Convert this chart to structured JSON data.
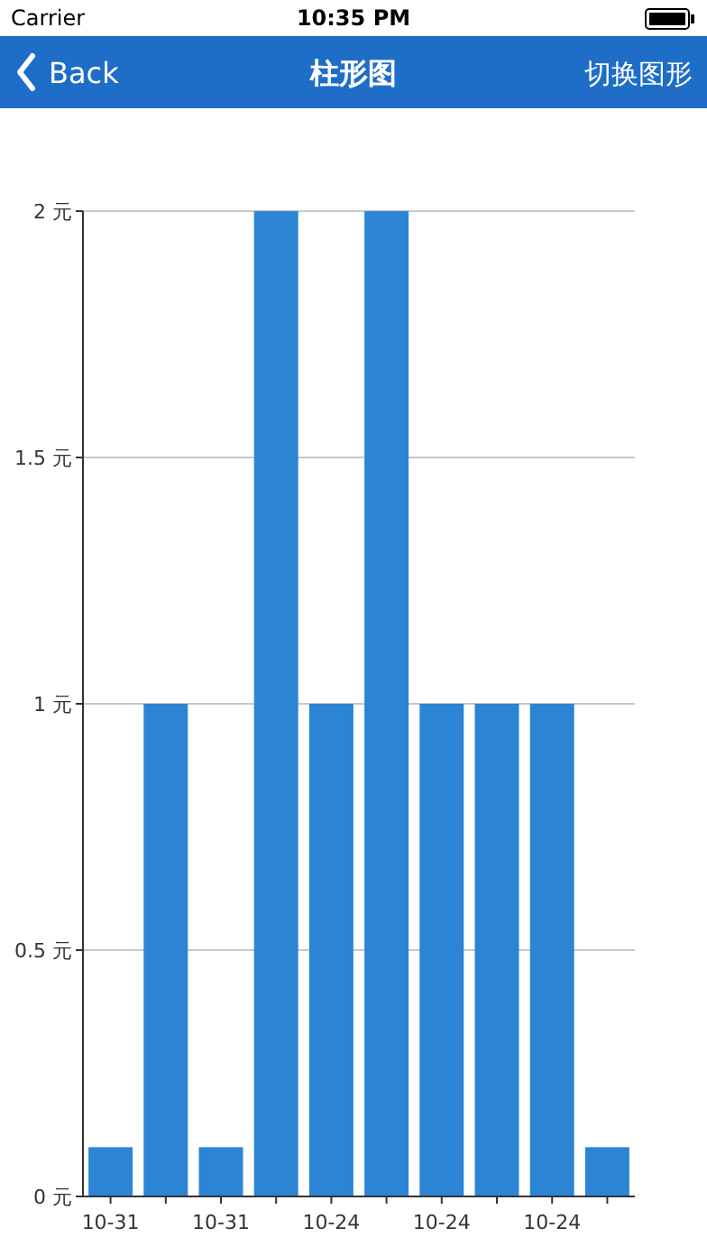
{
  "chart_data": {
    "type": "bar",
    "title": "柱形图",
    "annotations": [
      "Carrier",
      "10:35 PM",
      "Back",
      "切换图形"
    ],
    "categories": [
      "10-31",
      null,
      "10-31",
      null,
      "10-24",
      null,
      "10-24",
      null,
      "10-24",
      null
    ],
    "values": [
      0.1,
      1,
      0.1,
      2,
      1,
      2,
      1,
      1,
      1,
      0.1
    ],
    "color": "#2b84d4",
    "ylim": [
      0,
      2
    ],
    "yticks": [
      {
        "value": 0,
        "label": "0 元"
      },
      {
        "value": 0.5,
        "label": "0.5 元"
      },
      {
        "value": 1,
        "label": "1 元"
      },
      {
        "value": 1.5,
        "label": "1.5 元"
      },
      {
        "value": 2,
        "label": "2 元"
      }
    ],
    "grid": "y"
  }
}
